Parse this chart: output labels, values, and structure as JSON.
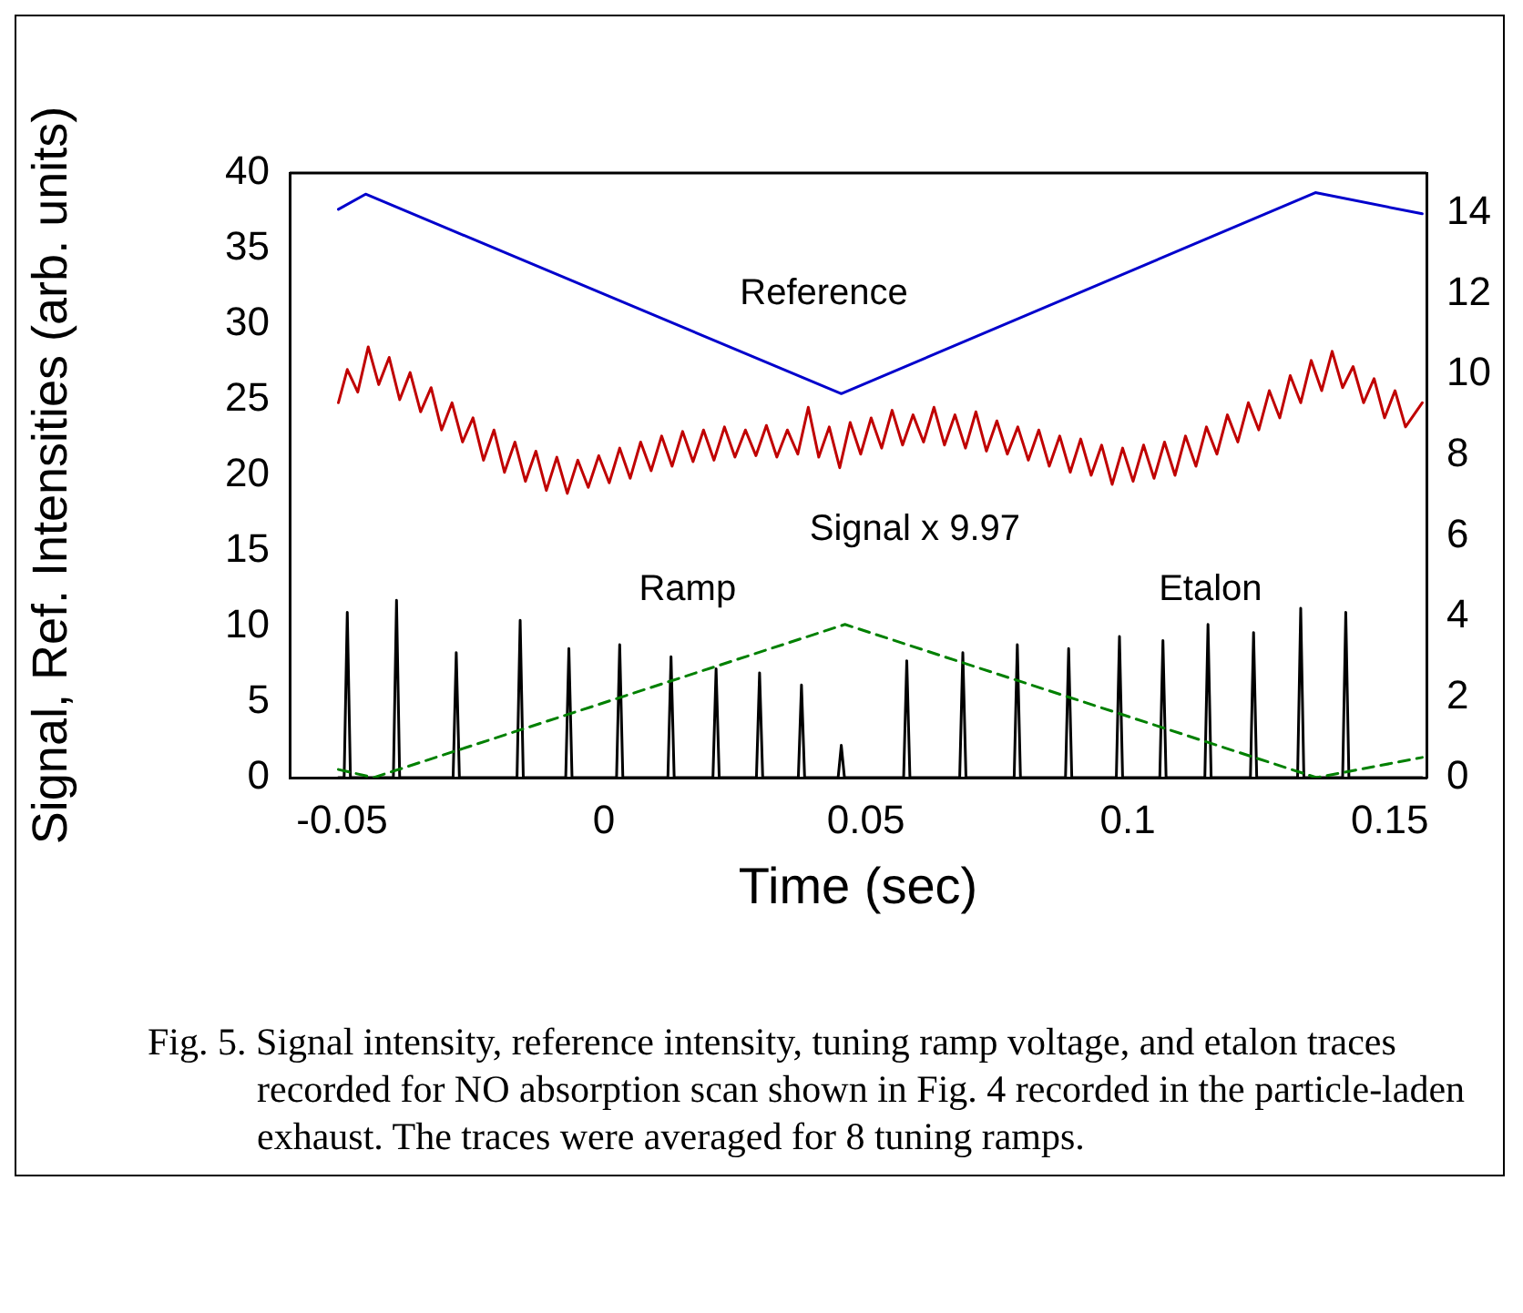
{
  "chart_data": {
    "type": "line",
    "xlabel": "Time (sec)",
    "ylabel": "Signal, Ref. Intensities (arb. units)",
    "xlim": [
      -0.06,
      0.157
    ],
    "xticks": [
      -0.05,
      0,
      0.05,
      0.1,
      0.15
    ],
    "ylim": [
      0,
      40
    ],
    "yticks": [
      0,
      5,
      10,
      15,
      20,
      25,
      30,
      35,
      40
    ],
    "y2lim": [
      0,
      15
    ],
    "y2ticks": [
      0,
      2,
      4,
      6,
      8,
      10,
      12,
      14
    ],
    "grid": false,
    "legend": false,
    "marker": "none",
    "series": [
      {
        "name": "Reference",
        "color": "#0000cc",
        "x": [
          -0.0507,
          -0.0455,
          0.0453,
          0.1358,
          0.1562
        ],
        "values": [
          37.6,
          38.6,
          25.4,
          38.7,
          37.3
        ]
      },
      {
        "name": "Signal x 9.97",
        "color": "#c00000",
        "x": [
          -0.0507,
          -0.049,
          -0.047,
          -0.045,
          -0.043,
          -0.041,
          -0.039,
          -0.037,
          -0.035,
          -0.033,
          -0.031,
          -0.029,
          -0.027,
          -0.025,
          -0.023,
          -0.021,
          -0.019,
          -0.017,
          -0.015,
          -0.013,
          -0.011,
          -0.009,
          -0.007,
          -0.005,
          -0.003,
          -0.001,
          0.001,
          0.003,
          0.005,
          0.007,
          0.009,
          0.011,
          0.013,
          0.015,
          0.017,
          0.019,
          0.021,
          0.023,
          0.025,
          0.027,
          0.029,
          0.031,
          0.033,
          0.035,
          0.037,
          0.039,
          0.041,
          0.043,
          0.045,
          0.047,
          0.049,
          0.051,
          0.053,
          0.055,
          0.057,
          0.059,
          0.061,
          0.063,
          0.065,
          0.067,
          0.069,
          0.071,
          0.073,
          0.075,
          0.077,
          0.079,
          0.081,
          0.083,
          0.085,
          0.087,
          0.089,
          0.091,
          0.093,
          0.095,
          0.097,
          0.099,
          0.101,
          0.103,
          0.105,
          0.107,
          0.109,
          0.111,
          0.113,
          0.115,
          0.117,
          0.119,
          0.121,
          0.123,
          0.125,
          0.127,
          0.129,
          0.131,
          0.133,
          0.135,
          0.137,
          0.139,
          0.141,
          0.143,
          0.145,
          0.147,
          0.149,
          0.151,
          0.153,
          0.1562
        ],
        "values": [
          24.8,
          27.0,
          25.5,
          28.5,
          26.0,
          27.8,
          25.0,
          26.8,
          24.2,
          25.8,
          23.0,
          24.8,
          22.2,
          23.8,
          21.0,
          23.0,
          20.2,
          22.2,
          19.6,
          21.6,
          19.0,
          21.2,
          18.8,
          21.0,
          19.2,
          21.3,
          19.5,
          21.8,
          19.8,
          22.2,
          20.3,
          22.6,
          20.6,
          22.9,
          20.9,
          23.0,
          21.0,
          23.2,
          21.2,
          23.0,
          21.3,
          23.3,
          21.2,
          23.0,
          21.4,
          24.5,
          21.2,
          23.2,
          20.5,
          23.5,
          21.4,
          23.8,
          21.8,
          24.3,
          22.0,
          24.0,
          22.2,
          24.5,
          22.0,
          24.0,
          21.8,
          24.2,
          21.6,
          23.6,
          21.4,
          23.2,
          21.0,
          23.0,
          20.6,
          22.6,
          20.2,
          22.4,
          20.0,
          22.0,
          19.4,
          21.8,
          19.6,
          22.0,
          19.8,
          22.2,
          20.0,
          22.6,
          20.6,
          23.2,
          21.4,
          24.0,
          22.2,
          24.8,
          23.0,
          25.6,
          23.8,
          26.6,
          24.8,
          27.6,
          25.6,
          28.2,
          25.8,
          27.2,
          24.8,
          26.4,
          23.8,
          25.6,
          23.2,
          24.8
        ]
      },
      {
        "name": "Ramp",
        "color": "#008000",
        "axis": "y2",
        "line_style": "dashed",
        "x": [
          -0.0507,
          -0.044,
          0.046,
          0.136,
          0.1562
        ],
        "values": [
          0.2,
          0,
          3.8,
          0,
          0.5
        ]
      },
      {
        "name": "Etalon",
        "color": "#000000",
        "axis": "y2",
        "x": [
          -0.0507,
          -0.0496,
          -0.049,
          -0.0484,
          -0.0402,
          -0.0396,
          -0.039,
          -0.0288,
          -0.0282,
          -0.0276,
          -0.0166,
          -0.016,
          -0.0154,
          -0.0073,
          -0.0067,
          -0.0061,
          0.0024,
          0.003,
          0.0036,
          0.0122,
          0.0128,
          0.0134,
          0.0208,
          0.0214,
          0.022,
          0.0291,
          0.0297,
          0.0303,
          0.0371,
          0.0377,
          0.0383,
          0.0447,
          0.0453,
          0.0459,
          0.0572,
          0.0578,
          0.0584,
          0.0679,
          0.0685,
          0.0691,
          0.0783,
          0.0789,
          0.0795,
          0.0881,
          0.0887,
          0.0893,
          0.0978,
          0.0984,
          0.099,
          0.1061,
          0.1067,
          0.1073,
          0.1147,
          0.1153,
          0.1159,
          0.1234,
          0.124,
          0.1246,
          0.1324,
          0.133,
          0.1336,
          0.141,
          0.1416,
          0.1422,
          0.1562
        ],
        "values": [
          0,
          0,
          4.1,
          0,
          0,
          4.4,
          0,
          0,
          3.1,
          0,
          0,
          3.9,
          0,
          0,
          3.2,
          0,
          0,
          3.3,
          0,
          0,
          3.0,
          0,
          0,
          2.7,
          0,
          0,
          2.6,
          0,
          0,
          2.3,
          0,
          0,
          0.8,
          0,
          0,
          2.9,
          0,
          0,
          3.1,
          0,
          0,
          3.3,
          0,
          0,
          3.2,
          0,
          0,
          3.5,
          0,
          0,
          3.4,
          0,
          0,
          3.8,
          0,
          0,
          3.6,
          0,
          0,
          4.2,
          0,
          0,
          4.1,
          0,
          0
        ]
      }
    ],
    "annotations": [
      "Fig. 5.    Signal intensity, reference intensity, tuning ramp voltage, and etalon traces recorded for NO absorption scan shown in Fig. 4 recorded in the particle-laden exhaust.  The traces were averaged for 8 tuning ramps."
    ]
  }
}
